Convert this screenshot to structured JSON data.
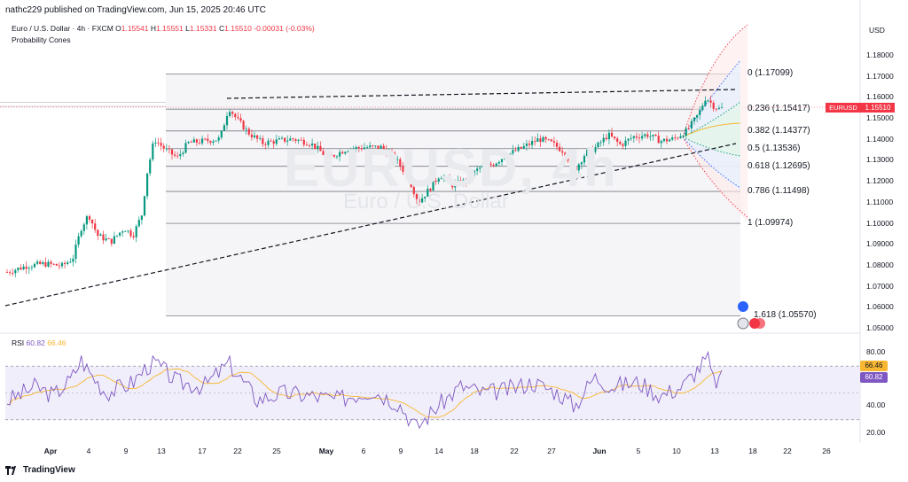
{
  "header": {
    "text": "nathc229 published on TradingView.com, Jun 15, 2025 20:46 UTC"
  },
  "symbol": {
    "name": "Euro / U.S. Dollar · 4h · FXCM",
    "o_label": "O",
    "o": "1.15541",
    "h_label": "H",
    "h": "1.15551",
    "l_label": "L",
    "l": "1.15331",
    "c_label": "C",
    "c": "1.15510",
    "change": "-0.00031 (-0.03%)"
  },
  "indicator": {
    "label": "Probability Cones"
  },
  "currency": "USD",
  "watermark": {
    "main": "EURUSD, 4h",
    "sub": "Euro / U.S. Dollar"
  },
  "price_axis": [
    "1.18000",
    "1.17000",
    "1.16000",
    "1.15000",
    "1.14000",
    "1.13000",
    "1.12000",
    "1.11000",
    "1.10000",
    "1.09000",
    "1.08000",
    "1.07000",
    "1.06000",
    "1.05000"
  ],
  "price_tag": {
    "symbol": "EURUSD",
    "value": "1.15510"
  },
  "fib_levels": [
    {
      "label": "0 (1.17099)",
      "price": 1.17099
    },
    {
      "label": "0.236 (1.15417)",
      "price": 1.15417
    },
    {
      "label": "0.382 (1.14377)",
      "price": 1.14377
    },
    {
      "label": "0.5 (1.13536)",
      "price": 1.13536
    },
    {
      "label": "0.618 (1.12695)",
      "price": 1.12695
    },
    {
      "label": "0.786 (1.11498)",
      "price": 1.11498
    },
    {
      "label": "1 (1.09974)",
      "price": 1.09974
    },
    {
      "label": "1.618 (1.05570)",
      "price": 1.0557
    }
  ],
  "dates": [
    {
      "label": "Apr",
      "month": true
    },
    {
      "label": "4"
    },
    {
      "label": "9"
    },
    {
      "label": "13"
    },
    {
      "label": "17"
    },
    {
      "label": "22"
    },
    {
      "label": "25"
    },
    {
      "label": "May",
      "month": true
    },
    {
      "label": "6"
    },
    {
      "label": "9"
    },
    {
      "label": "14"
    },
    {
      "label": "18"
    },
    {
      "label": "22"
    },
    {
      "label": "27"
    },
    {
      "label": "Jun",
      "month": true
    },
    {
      "label": "5"
    },
    {
      "label": "10"
    },
    {
      "label": "13"
    },
    {
      "label": "18"
    },
    {
      "label": "22"
    },
    {
      "label": "26"
    }
  ],
  "rsi": {
    "label": "RSI",
    "value": "60.82",
    "ma": "66.46",
    "axis": [
      "80.00",
      "40.00",
      "20.00"
    ],
    "badge_ma": "66.46",
    "badge_value": "60.82"
  },
  "logo": {
    "text": "TradingView"
  },
  "colors": {
    "up": "#089981",
    "down": "#f23645",
    "rsi": "#7e57c2",
    "rsi_ma": "#f7b731"
  }
}
